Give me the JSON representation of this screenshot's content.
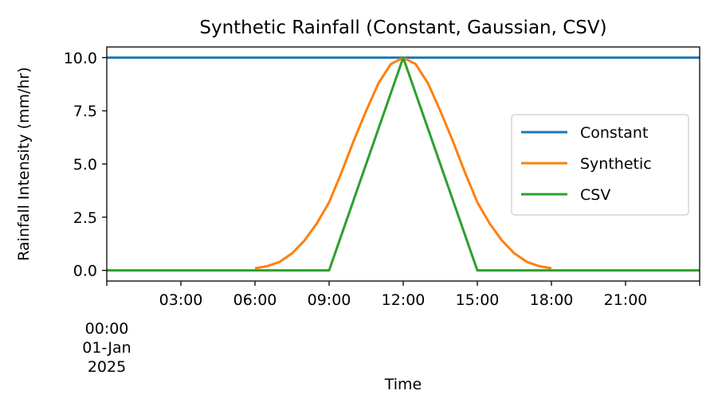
{
  "chart_data": {
    "type": "line",
    "title": "Synthetic Rainfall (Constant, Gaussian, CSV)",
    "xlabel": "Time",
    "ylabel": "Rainfall Intensity (mm/hr)",
    "xlim": [
      "2025-01-01 00:00",
      "2025-01-02 00:00"
    ],
    "ylim": [
      -0.5,
      10.5
    ],
    "x_ticks": [
      {
        "x": "2025-01-01 00:00",
        "label": "00:00",
        "label2": "01-Jan",
        "label3": "2025"
      },
      {
        "x": "2025-01-01 03:00",
        "label": "03:00"
      },
      {
        "x": "2025-01-01 06:00",
        "label": "06:00"
      },
      {
        "x": "2025-01-01 09:00",
        "label": "09:00"
      },
      {
        "x": "2025-01-01 12:00",
        "label": "12:00"
      },
      {
        "x": "2025-01-01 15:00",
        "label": "15:00"
      },
      {
        "x": "2025-01-01 18:00",
        "label": "18:00"
      },
      {
        "x": "2025-01-01 21:00",
        "label": "21:00"
      }
    ],
    "y_ticks": [
      0.0,
      2.5,
      5.0,
      7.5,
      10.0
    ],
    "y_tick_labels": [
      "0.0",
      "2.5",
      "5.0",
      "7.5",
      "10.0"
    ],
    "grid": false,
    "legend_position": "center-right",
    "series": [
      {
        "name": "Constant",
        "color": "#1f77b4",
        "x": [
          "2025-01-01 00:00",
          "2025-01-02 00:00"
        ],
        "y": [
          10,
          10
        ]
      },
      {
        "name": "Synthetic",
        "color": "#ff7f0e",
        "x": [
          "2025-01-01 06:00",
          "2025-01-01 06:30",
          "2025-01-01 07:00",
          "2025-01-01 07:30",
          "2025-01-01 08:00",
          "2025-01-01 08:30",
          "2025-01-01 09:00",
          "2025-01-01 09:30",
          "2025-01-01 10:00",
          "2025-01-01 10:30",
          "2025-01-01 11:00",
          "2025-01-01 11:30",
          "2025-01-01 12:00",
          "2025-01-01 12:30",
          "2025-01-01 13:00",
          "2025-01-01 13:30",
          "2025-01-01 14:00",
          "2025-01-01 14:30",
          "2025-01-01 15:00",
          "2025-01-01 15:30",
          "2025-01-01 16:00",
          "2025-01-01 16:30",
          "2025-01-01 17:00",
          "2025-01-01 17:30",
          "2025-01-01 18:00"
        ],
        "y": [
          0.1,
          0.2,
          0.4,
          0.8,
          1.4,
          2.2,
          3.2,
          4.6,
          6.1,
          7.5,
          8.8,
          9.7,
          10.0,
          9.7,
          8.8,
          7.5,
          6.1,
          4.6,
          3.2,
          2.2,
          1.4,
          0.8,
          0.4,
          0.2,
          0.1
        ]
      },
      {
        "name": "CSV",
        "color": "#2ca02c",
        "x": [
          "2025-01-01 00:00",
          "2025-01-01 09:00",
          "2025-01-01 12:00",
          "2025-01-01 15:00",
          "2025-01-02 00:00"
        ],
        "y": [
          0,
          0,
          10,
          0,
          0
        ]
      }
    ]
  }
}
